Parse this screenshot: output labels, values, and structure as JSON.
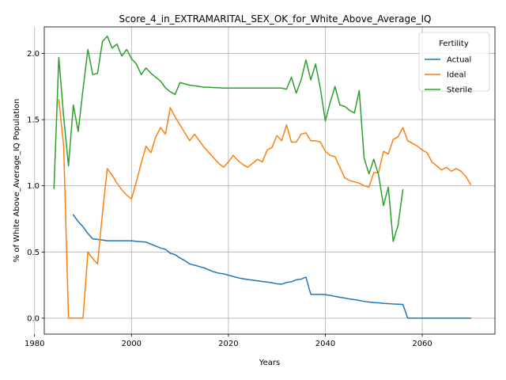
{
  "chart_data": {
    "type": "line",
    "title": "Score_4_in_EXTRAMARITAL_SEX_OK_for_White_Above_Average_IQ",
    "xlabel": "Years",
    "ylabel": "% of White Above_Average_IQ Population",
    "xlim": [
      1982,
      2075
    ],
    "ylim": [
      -0.12,
      2.2
    ],
    "x_ticks": [
      1980,
      2000,
      2020,
      2040,
      2060
    ],
    "y_ticks": [
      0.0,
      0.5,
      1.0,
      1.5,
      2.0
    ],
    "x_tick_labels": [
      "1980",
      "2000",
      "2020",
      "2040",
      "2060"
    ],
    "y_tick_labels": [
      "0.0",
      "0.5",
      "1.0",
      "1.5",
      "2.0"
    ],
    "grid": true,
    "legend": {
      "title": "Fertility",
      "position": "top-right"
    },
    "series": [
      {
        "name": "Actual",
        "color": "#1f77b4",
        "x": [
          1988,
          1989,
          1990,
          1991,
          1992,
          1993,
          1994,
          1995,
          1996,
          1997,
          1998,
          1999,
          2000,
          2001,
          2002,
          2003,
          2004,
          2005,
          2006,
          2007,
          2008,
          2009,
          2010,
          2011,
          2012,
          2013,
          2014,
          2015,
          2016,
          2017,
          2018,
          2019,
          2020,
          2021,
          2022,
          2023,
          2024,
          2025,
          2026,
          2027,
          2028,
          2029,
          2030,
          2031,
          2032,
          2033,
          2034,
          2035,
          2036,
          2037,
          2038,
          2039,
          2040,
          2041,
          2042,
          2043,
          2044,
          2045,
          2046,
          2047,
          2048,
          2049,
          2050,
          2051,
          2052,
          2053,
          2054,
          2055,
          2056,
          2057,
          2058,
          2059,
          2060,
          2061,
          2062,
          2063,
          2064,
          2065,
          2066,
          2067,
          2068,
          2069,
          2070
        ],
        "y": [
          0.78,
          0.73,
          0.69,
          0.64,
          0.6,
          0.595,
          0.59,
          0.585,
          0.585,
          0.585,
          0.585,
          0.585,
          0.585,
          0.58,
          0.577,
          0.575,
          0.56,
          0.545,
          0.53,
          0.52,
          0.49,
          0.48,
          0.455,
          0.435,
          0.41,
          0.4,
          0.39,
          0.38,
          0.365,
          0.35,
          0.34,
          0.335,
          0.325,
          0.315,
          0.305,
          0.298,
          0.292,
          0.287,
          0.282,
          0.277,
          0.273,
          0.267,
          0.26,
          0.257,
          0.27,
          0.275,
          0.29,
          0.295,
          0.31,
          0.18,
          0.18,
          0.18,
          0.178,
          0.172,
          0.165,
          0.158,
          0.152,
          0.145,
          0.14,
          0.134,
          0.127,
          0.122,
          0.118,
          0.116,
          0.112,
          0.11,
          0.107,
          0.106,
          0.104,
          0.0,
          0.0,
          0.0,
          0.0,
          0.0,
          0.0,
          0.0,
          0.0,
          0.0,
          0.0,
          0.0,
          0.0,
          0.0,
          0.0
        ]
      },
      {
        "name": "Ideal",
        "color": "#ff7f0e",
        "x": [
          1985,
          1986,
          1987,
          1988,
          1989,
          1990,
          1991,
          1992,
          1993,
          1994,
          1995,
          1996,
          1997,
          1998,
          1999,
          2000,
          2001,
          2002,
          2003,
          2004,
          2005,
          2006,
          2007,
          2008,
          2009,
          2010,
          2011,
          2012,
          2013,
          2014,
          2015,
          2016,
          2017,
          2018,
          2019,
          2020,
          2021,
          2022,
          2023,
          2024,
          2025,
          2026,
          2027,
          2028,
          2029,
          2030,
          2031,
          2032,
          2033,
          2034,
          2035,
          2036,
          2037,
          2038,
          2039,
          2040,
          2041,
          2042,
          2043,
          2044,
          2045,
          2046,
          2047,
          2048,
          2049,
          2050,
          2051,
          2052,
          2053,
          2054,
          2055,
          2056,
          2057,
          2058,
          2059,
          2060,
          2061,
          2062,
          2063,
          2064,
          2065,
          2066,
          2067,
          2068,
          2069,
          2070
        ],
        "y": [
          1.65,
          1.3,
          0.0,
          0.0,
          0.0,
          0.0,
          0.5,
          0.45,
          0.41,
          0.79,
          1.13,
          1.08,
          1.02,
          0.97,
          0.93,
          0.9,
          1.03,
          1.17,
          1.3,
          1.25,
          1.37,
          1.44,
          1.39,
          1.59,
          1.52,
          1.46,
          1.4,
          1.34,
          1.39,
          1.34,
          1.29,
          1.25,
          1.21,
          1.17,
          1.14,
          1.18,
          1.23,
          1.19,
          1.16,
          1.14,
          1.17,
          1.2,
          1.18,
          1.27,
          1.29,
          1.38,
          1.34,
          1.46,
          1.33,
          1.33,
          1.39,
          1.4,
          1.34,
          1.34,
          1.33,
          1.26,
          1.23,
          1.22,
          1.14,
          1.06,
          1.04,
          1.03,
          1.02,
          1.0,
          0.99,
          1.1,
          1.1,
          1.26,
          1.24,
          1.35,
          1.37,
          1.44,
          1.34,
          1.32,
          1.3,
          1.27,
          1.25,
          1.18,
          1.15,
          1.12,
          1.14,
          1.11,
          1.13,
          1.11,
          1.07,
          1.01
        ]
      },
      {
        "name": "Sterile",
        "color": "#2ca02c",
        "x": [
          1984,
          1985,
          1986,
          1987,
          1988,
          1989,
          1990,
          1991,
          1992,
          1993,
          1994,
          1995,
          1996,
          1997,
          1998,
          1999,
          2000,
          2001,
          2002,
          2003,
          2004,
          2005,
          2006,
          2007,
          2008,
          2009,
          2010,
          2011,
          2012,
          2013,
          2014,
          2015,
          2016,
          2017,
          2018,
          2019,
          2020,
          2021,
          2022,
          2023,
          2024,
          2025,
          2026,
          2027,
          2028,
          2029,
          2030,
          2031,
          2032,
          2033,
          2034,
          2035,
          2036,
          2037,
          2038,
          2039,
          2040,
          2041,
          2042,
          2043,
          2044,
          2045,
          2046,
          2047,
          2048,
          2049,
          2050,
          2051,
          2052,
          2053,
          2054,
          2055,
          2056
        ],
        "y": [
          0.98,
          1.97,
          1.52,
          1.15,
          1.61,
          1.41,
          1.73,
          2.03,
          1.84,
          1.85,
          2.09,
          2.13,
          2.04,
          2.07,
          1.98,
          2.03,
          1.96,
          1.92,
          1.84,
          1.89,
          1.85,
          1.82,
          1.79,
          1.74,
          1.71,
          1.69,
          1.78,
          1.77,
          1.76,
          1.755,
          1.75,
          1.745,
          1.745,
          1.742,
          1.74,
          1.738,
          1.738,
          1.738,
          1.738,
          1.738,
          1.738,
          1.738,
          1.738,
          1.738,
          1.738,
          1.738,
          1.738,
          1.738,
          1.73,
          1.82,
          1.7,
          1.8,
          1.95,
          1.8,
          1.92,
          1.73,
          1.49,
          1.63,
          1.75,
          1.61,
          1.6,
          1.57,
          1.55,
          1.72,
          1.21,
          1.09,
          1.2,
          1.08,
          0.85,
          0.99,
          0.58,
          0.7,
          0.97
        ]
      }
    ]
  }
}
